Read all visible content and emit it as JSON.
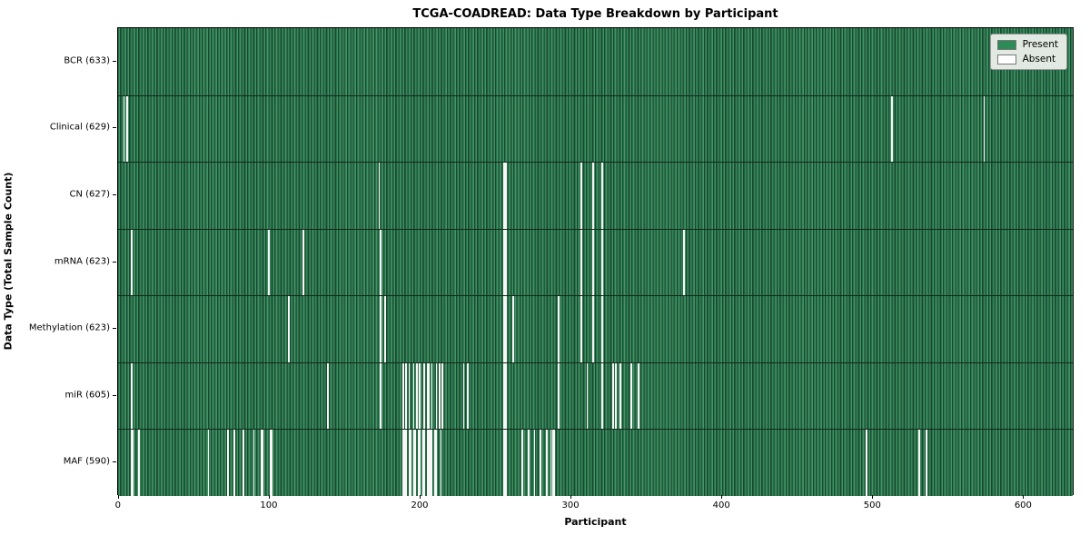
{
  "chart_data": {
    "type": "heatmap",
    "title": "TCGA-COADREAD: Data Type Breakdown by Participant",
    "xlabel": "Participant",
    "ylabel": "Data Type (Total Sample Count)",
    "x_ticks": [
      0,
      100,
      200,
      300,
      400,
      500,
      600
    ],
    "xlim": [
      -0.5,
      633.5
    ],
    "n_participants": 633,
    "grid": false,
    "legend_position": "upper right",
    "present_color": "#2e8b57",
    "absent_color": "#ffffff",
    "legend_items": [
      {
        "label": "Present",
        "color": "#2e8b57"
      },
      {
        "label": "Absent",
        "color": "#ffffff"
      }
    ],
    "rows": [
      {
        "label": "BCR (633)",
        "data_type": "BCR",
        "present_count": 633,
        "absent_participants": []
      },
      {
        "label": "Clinical (629)",
        "data_type": "Clinical",
        "present_count": 629,
        "absent_participants": [
          3,
          5,
          512,
          573
        ]
      },
      {
        "label": "CN (627)",
        "data_type": "CN",
        "present_count": 627,
        "absent_participants": [
          172,
          255,
          256,
          306,
          314,
          320
        ]
      },
      {
        "label": "mRNA (623)",
        "data_type": "mRNA",
        "present_count": 623,
        "absent_participants": [
          8,
          99,
          122,
          173,
          255,
          256,
          306,
          314,
          320,
          374
        ]
      },
      {
        "label": "Methylation (623)",
        "data_type": "Methylation",
        "present_count": 623,
        "absent_participants": [
          112,
          173,
          176,
          255,
          256,
          261,
          291,
          306,
          314,
          320
        ]
      },
      {
        "label": "miR (605)",
        "data_type": "miR",
        "present_count": 605,
        "absent_participants": [
          8,
          138,
          173,
          188,
          190,
          192,
          195,
          197,
          199,
          202,
          204,
          205,
          207,
          210,
          212,
          214,
          228,
          231,
          255,
          256,
          291,
          310,
          320,
          327,
          329,
          332,
          339,
          344
        ]
      },
      {
        "label": "MAF (590)",
        "data_type": "MAF",
        "present_count": 590,
        "absent_participants": [
          8,
          9,
          13,
          59,
          72,
          76,
          82,
          89,
          94,
          95,
          100,
          101,
          188,
          189,
          190,
          192,
          193,
          195,
          196,
          198,
          199,
          201,
          202,
          204,
          205,
          206,
          207,
          209,
          210,
          213,
          255,
          256,
          267,
          271,
          275,
          279,
          283,
          286,
          287,
          288,
          495,
          530,
          535
        ]
      }
    ]
  }
}
